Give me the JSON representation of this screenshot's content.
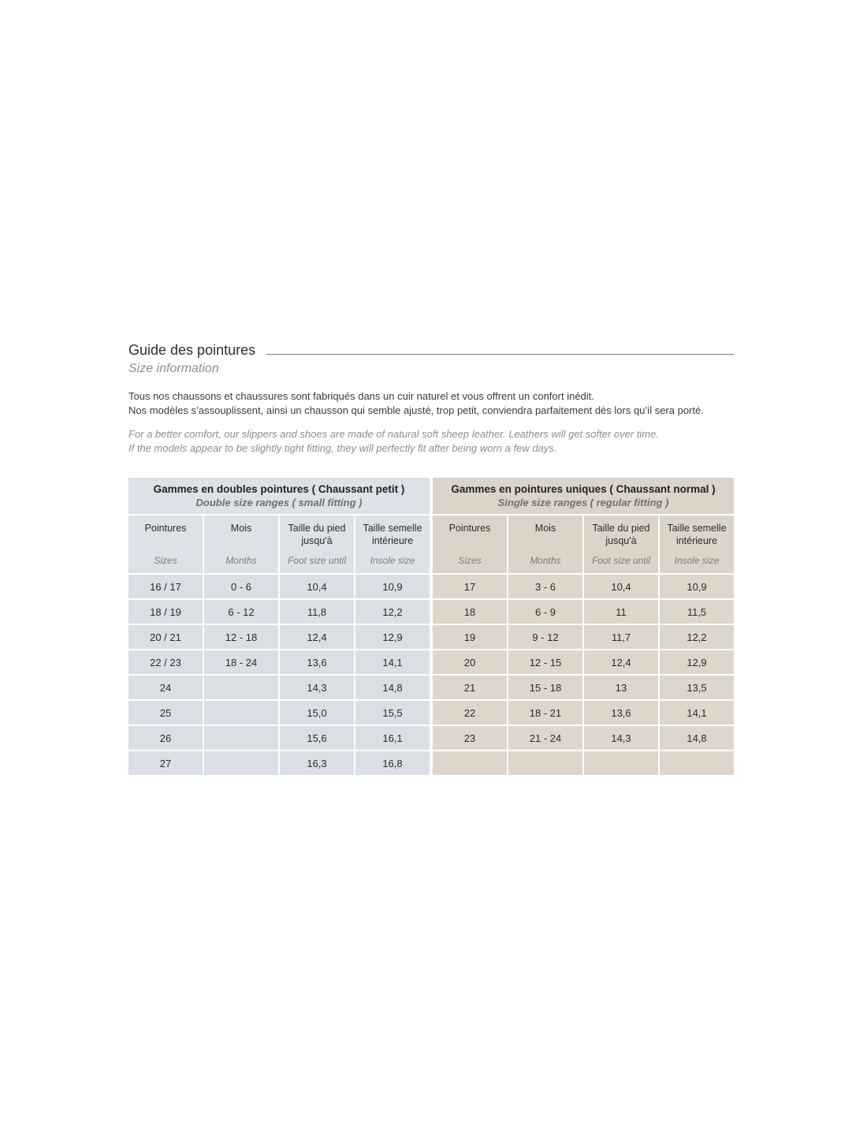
{
  "page": {
    "title_fr": "Guide des pointures",
    "title_en": "Size information",
    "intro_fr_1": "Tous nos chaussons et chaussures sont fabriqués dans un cuir naturel et vous offrent un confort inédit.",
    "intro_fr_2": "Nos modèles s’assouplissent, ainsi un chausson qui semble ajusté, trop petit, conviendra parfaitement dès lors qu’il sera porté.",
    "intro_en_1": "For a better comfort, our slippers and shoes are made of natural soft sheep leather. Leathers will get softer over time.",
    "intro_en_2": "If the models appear to be slightly tight fitting, they will perfectly fit after being worn a few days.",
    "rule_color": "#707b85"
  },
  "tables": [
    {
      "name": "double-size-table",
      "title_fr": "Gammes en doubles pointures ( Chaussant petit )",
      "title_en": "Double size ranges ( small fitting )",
      "colors": {
        "header_bg": "#dce2e7",
        "cell_bg": "#d9dfe4"
      },
      "columns_fr": [
        "Pointures",
        "Mois",
        "Taille du pied\njusqu'à",
        "Taille semelle\nintérieure"
      ],
      "columns_en": [
        "Sizes",
        "Months",
        "Foot size until",
        "Insole size"
      ],
      "rows": [
        [
          "16 / 17",
          "0 - 6",
          "10,4",
          "10,9"
        ],
        [
          "18 / 19",
          "6 - 12",
          "11,8",
          "12,2"
        ],
        [
          "20 / 21",
          "12 - 18",
          "12,4",
          "12,9"
        ],
        [
          "22 / 23",
          "18 - 24",
          "13,6",
          "14,1"
        ],
        [
          "24",
          "",
          "14,3",
          "14,8"
        ],
        [
          "25",
          "",
          "15,0",
          "15,5"
        ],
        [
          "26",
          "",
          "15,6",
          "16,1"
        ],
        [
          "27",
          "",
          "16,3",
          "16,8"
        ]
      ]
    },
    {
      "name": "single-size-table",
      "title_fr": "Gammes en pointures uniques ( Chaussant normal )",
      "title_en": "Single size ranges ( regular fitting )",
      "colors": {
        "header_bg": "#ddd4c9",
        "cell_bg": "#ded5cb"
      },
      "columns_fr": [
        "Pointures",
        "Mois",
        "Taille du pied\njusqu'à",
        "Taille semelle\nintérieure"
      ],
      "columns_en": [
        "Sizes",
        "Months",
        "Foot size until",
        "Insole size"
      ],
      "rows": [
        [
          "17",
          "3 - 6",
          "10,4",
          "10,9"
        ],
        [
          "18",
          "6 - 9",
          "11",
          "11,5"
        ],
        [
          "19",
          "9 - 12",
          "11,7",
          "12,2"
        ],
        [
          "20",
          "12 - 15",
          "12,4",
          "12,9"
        ],
        [
          "21",
          "15 - 18",
          "13",
          "13,5"
        ],
        [
          "22",
          "18 - 21",
          "13,6",
          "14,1"
        ],
        [
          "23",
          "21 - 24",
          "14,3",
          "14,8"
        ],
        [
          "",
          "",
          "",
          ""
        ]
      ]
    }
  ]
}
